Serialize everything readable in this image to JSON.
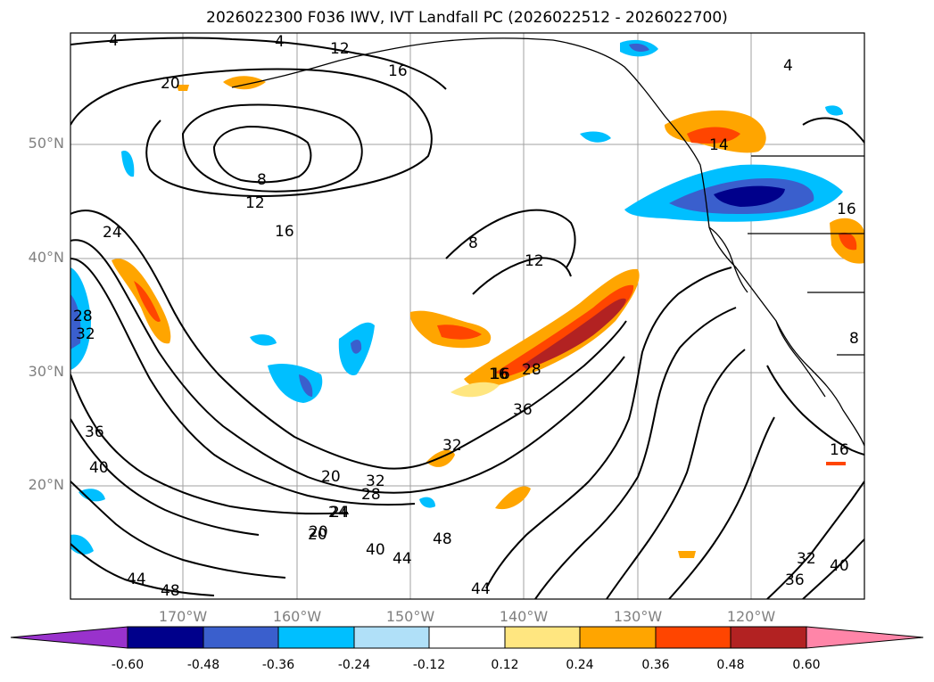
{
  "title": "2026022300 F036 IWV, IVT Landfall PC (2026022512 - 2026022700)",
  "map": {
    "lat_labels": [
      "50°N",
      "40°N",
      "30°N",
      "20°N"
    ],
    "lon_labels": [
      "170°W",
      "160°W",
      "150°W",
      "140°W",
      "130°W",
      "120°W"
    ],
    "contour_labels": [
      "4",
      "8",
      "12",
      "16",
      "20",
      "24",
      "28",
      "32",
      "36",
      "40",
      "44",
      "48",
      "16",
      "12",
      "4",
      "8",
      "12",
      "16",
      "20",
      "28",
      "32",
      "36",
      "40",
      "44",
      "48",
      "44",
      "40",
      "36",
      "32",
      "24",
      "20",
      "16",
      "4",
      "8",
      "16",
      "14",
      "20",
      "24",
      "16",
      "28",
      "32"
    ]
  },
  "colorbar": {
    "ticks": [
      "-0.60",
      "-0.48",
      "-0.36",
      "-0.24",
      "-0.12",
      "0.12",
      "0.24",
      "0.36",
      "0.48",
      "0.60"
    ],
    "colors": [
      "#9932cc",
      "#00008b",
      "#3a5fcd",
      "#00bfff",
      "#b0e0f8",
      "#ffffff",
      "#ffe680",
      "#ffa500",
      "#ff4500",
      "#b22222",
      "#ff85a8"
    ]
  }
}
